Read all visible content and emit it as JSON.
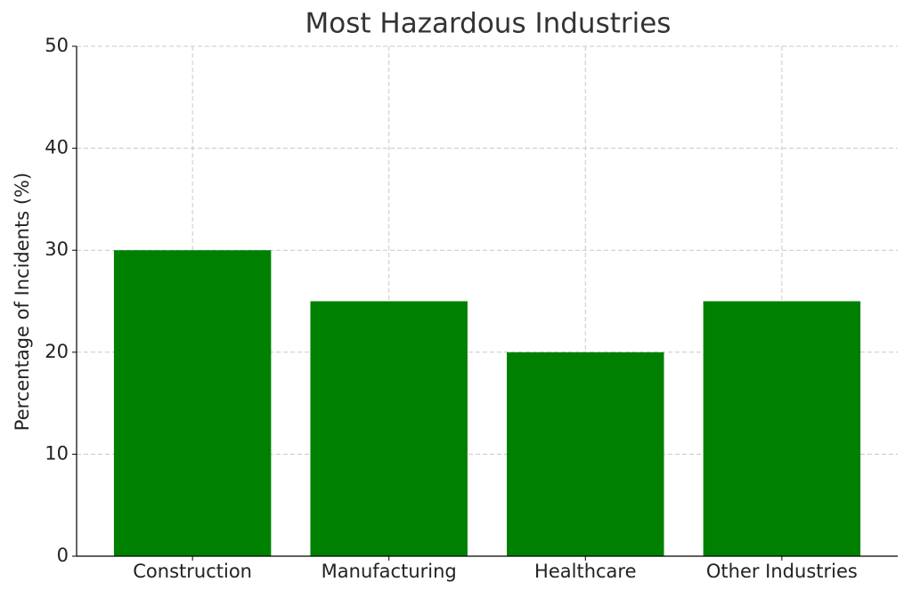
{
  "chart_data": {
    "type": "bar",
    "title": "Most Hazardous Industries",
    "y_label": "Percentage of Incidents (%)",
    "categories": [
      "Construction",
      "Manufacturing",
      "Healthcare",
      "Other Industries"
    ],
    "values": [
      30,
      25,
      20,
      25
    ],
    "color": "#008000",
    "ylim": [
      0,
      50
    ],
    "yticks": [
      0,
      10,
      20,
      30,
      40,
      50
    ],
    "grid": true
  }
}
